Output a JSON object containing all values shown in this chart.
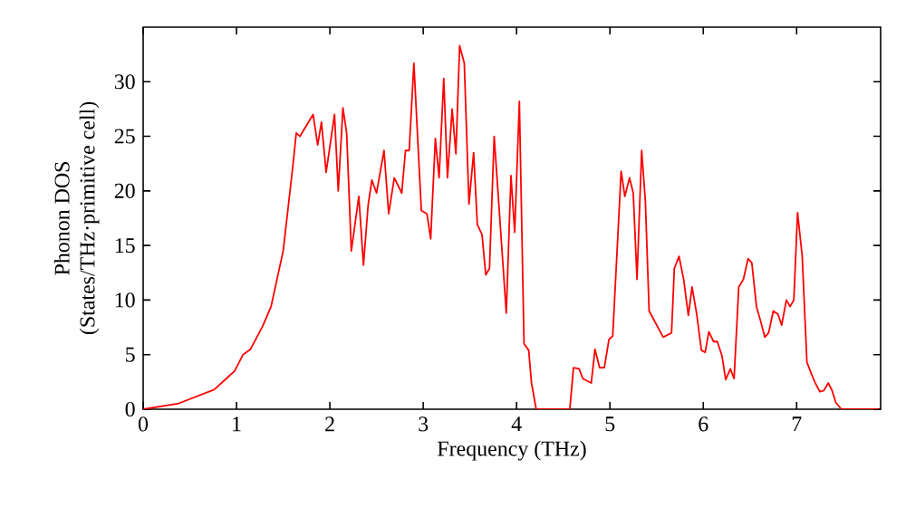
{
  "chart_data": {
    "type": "line",
    "xlabel": "Frequency (THz)",
    "ylabel": "Phonon DOS\n(States/THz·primitive cell)",
    "x": [
      0,
      0.37,
      0.76,
      0.89,
      0.98,
      1.07,
      1.15,
      1.28,
      1.37,
      1.5,
      1.6,
      1.64,
      1.68,
      1.82,
      1.87,
      1.91,
      1.96,
      2.05,
      2.09,
      2.14,
      2.18,
      2.23,
      2.31,
      2.36,
      2.41,
      2.45,
      2.5,
      2.58,
      2.63,
      2.69,
      2.77,
      2.81,
      2.85,
      2.9,
      2.98,
      3.04,
      3.08,
      3.13,
      3.17,
      3.22,
      3.26,
      3.31,
      3.35,
      3.39,
      3.44,
      3.49,
      3.54,
      3.58,
      3.63,
      3.67,
      3.71,
      3.76,
      3.89,
      3.94,
      3.98,
      4.03,
      4.08,
      4.13,
      4.16,
      4.21,
      4.57,
      4.61,
      4.67,
      4.71,
      4.8,
      4.84,
      4.89,
      4.94,
      4.99,
      5.03,
      5.12,
      5.16,
      5.21,
      5.25,
      5.29,
      5.34,
      5.38,
      5.42,
      5.57,
      5.66,
      5.69,
      5.74,
      5.79,
      5.84,
      5.88,
      5.93,
      5.98,
      6.02,
      6.06,
      6.11,
      6.15,
      6.2,
      6.24,
      6.29,
      6.33,
      6.38,
      6.43,
      6.48,
      6.52,
      6.57,
      6.61,
      6.66,
      6.7,
      6.75,
      6.8,
      6.84,
      6.89,
      6.93,
      6.97,
      7.01,
      7.06,
      7.11,
      7.16,
      7.2,
      7.25,
      7.29,
      7.34,
      7.38,
      7.42,
      7.48,
      7.88
    ],
    "series": [
      {
        "color": "#ff0000",
        "values": [
          0,
          0.5,
          1.8,
          2.8,
          3.5,
          5.0,
          5.5,
          7.6,
          9.4,
          14.5,
          22,
          25.3,
          25.0,
          27,
          24.2,
          26.3,
          21.7,
          27,
          20,
          27.6,
          25.3,
          14.5,
          19.5,
          13.2,
          18.7,
          21,
          19.8,
          23.7,
          17.9,
          21.2,
          19.8,
          23.7,
          23.7,
          31.7,
          18.2,
          17.9,
          15.6,
          24.8,
          21.2,
          30.3,
          21.2,
          27.5,
          23.4,
          33.3,
          31.7,
          18.8,
          23.5,
          16.9,
          16.0,
          12.3,
          12.9,
          25.0,
          8.8,
          21.4,
          16.2,
          28.2,
          6.0,
          5.4,
          2.4,
          0,
          0,
          3.8,
          3.7,
          2.8,
          2.4,
          5.5,
          3.8,
          3.8,
          6.4,
          6.7,
          21.8,
          19.5,
          21.2,
          19.8,
          11.9,
          23.7,
          19,
          9.0,
          6.6,
          7.0,
          12.9,
          14.0,
          11.9,
          8.6,
          11.2,
          8.7,
          5.4,
          5.2,
          7.1,
          6.2,
          6.2,
          4.9,
          2.7,
          3.7,
          2.8,
          11.2,
          11.9,
          13.8,
          13.4,
          9.4,
          8.2,
          6.6,
          7.0,
          9.0,
          8.7,
          7.7,
          10,
          9.4,
          10,
          18.0,
          14.0,
          4.3,
          3.2,
          2.4,
          1.6,
          1.7,
          2.4,
          1.7,
          0.6,
          0,
          0
        ]
      }
    ],
    "xlim": [
      0,
      7.9
    ],
    "ylim": [
      0,
      35
    ],
    "xticks": [
      0,
      1,
      2,
      3,
      4,
      5,
      6,
      7
    ],
    "yticks": [
      0,
      5,
      10,
      15,
      20,
      25,
      30
    ],
    "grid": false,
    "marker": "none",
    "line_style": "solid"
  }
}
